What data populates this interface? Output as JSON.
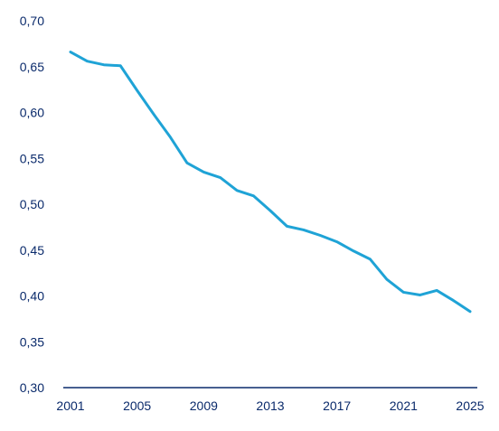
{
  "chart_data": {
    "type": "line",
    "title": "",
    "xlabel": "",
    "ylabel": "",
    "x": [
      2001,
      2002,
      2003,
      2004,
      2005,
      2006,
      2007,
      2008,
      2009,
      2010,
      2011,
      2012,
      2013,
      2014,
      2015,
      2016,
      2017,
      2018,
      2019,
      2020,
      2021,
      2022,
      2023,
      2024,
      2025
    ],
    "series": [
      {
        "values": [
          0.666,
          0.656,
          0.652,
          0.651,
          0.624,
          0.598,
          0.573,
          0.545,
          0.535,
          0.529,
          0.515,
          0.509,
          0.493,
          0.476,
          0.472,
          0.466,
          0.459,
          0.449,
          0.44,
          0.418,
          0.404,
          0.401,
          0.406,
          0.395,
          0.383
        ]
      }
    ],
    "xlim": [
      2001,
      2025
    ],
    "ylim": [
      0.3,
      0.7
    ],
    "x_ticks": [
      "2001",
      "2005",
      "2009",
      "2013",
      "2017",
      "2021",
      "2025"
    ],
    "x_tick_values": [
      2001,
      2005,
      2009,
      2013,
      2017,
      2021,
      2025
    ],
    "y_ticks": [
      "0,30",
      "0,35",
      "0,40",
      "0,45",
      "0,50",
      "0,55",
      "0,60",
      "0,65",
      "0,70"
    ],
    "y_tick_values": [
      0.3,
      0.35,
      0.4,
      0.45,
      0.5,
      0.55,
      0.6,
      0.65,
      0.7
    ],
    "grid": false,
    "colors": {
      "line": "#1fa3d6",
      "axis": "#0a2a6b",
      "text": "#0a2a6b"
    }
  }
}
